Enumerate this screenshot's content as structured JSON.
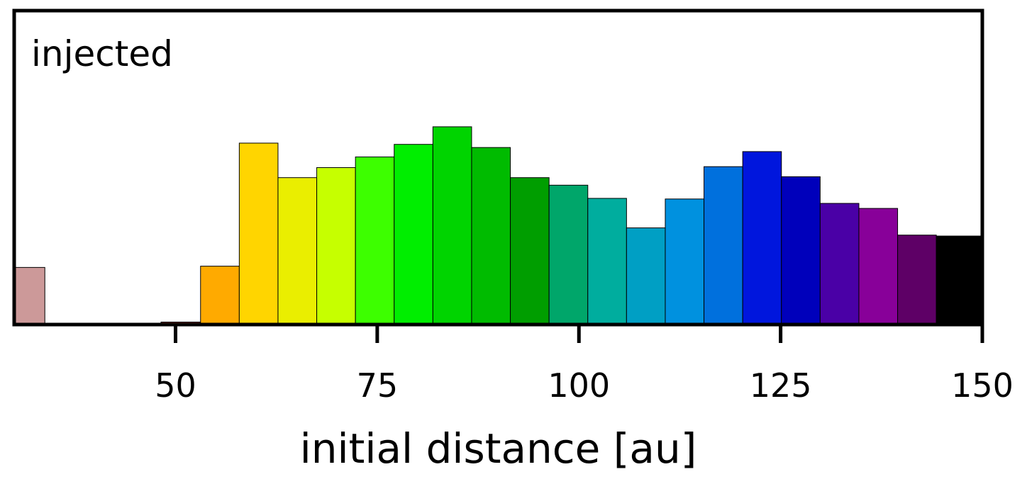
{
  "chart_data": {
    "type": "bar",
    "histogram": true,
    "annotation": "injected",
    "xlabel": "initial distance [au]",
    "ylabel": "",
    "xlim": [
      30,
      150
    ],
    "ylim": [
      0,
      1.0
    ],
    "xticks": [
      50,
      75,
      100,
      125,
      150
    ],
    "xtick_labels": [
      "50",
      "75",
      "100",
      "125",
      "150"
    ],
    "yticks_visible": false,
    "grid": false,
    "bin_width": 4.8,
    "bins": [
      {
        "x0": 30.0,
        "x1": 33.8,
        "value": 0.182,
        "color": "#cc9999"
      },
      {
        "x0": 48.2,
        "x1": 53.1,
        "value": 0.008,
        "color": "#993300"
      },
      {
        "x0": 53.1,
        "x1": 57.9,
        "value": 0.186,
        "color": "#ffaa00"
      },
      {
        "x0": 57.9,
        "x1": 62.7,
        "value": 0.578,
        "color": "#ffd500"
      },
      {
        "x0": 62.7,
        "x1": 67.5,
        "value": 0.468,
        "color": "#eaee00"
      },
      {
        "x0": 67.5,
        "x1": 72.3,
        "value": 0.5,
        "color": "#c6ff00"
      },
      {
        "x0": 72.3,
        "x1": 77.1,
        "value": 0.534,
        "color": "#3dff00"
      },
      {
        "x0": 77.1,
        "x1": 81.9,
        "value": 0.574,
        "color": "#00ee00"
      },
      {
        "x0": 81.9,
        "x1": 86.7,
        "value": 0.63,
        "color": "#00d400"
      },
      {
        "x0": 86.7,
        "x1": 91.5,
        "value": 0.564,
        "color": "#00bb00"
      },
      {
        "x0": 91.5,
        "x1": 96.3,
        "value": 0.468,
        "color": "#009e00"
      },
      {
        "x0": 96.3,
        "x1": 101.1,
        "value": 0.444,
        "color": "#00a66a"
      },
      {
        "x0": 101.1,
        "x1": 105.9,
        "value": 0.402,
        "color": "#00ad9e"
      },
      {
        "x0": 105.9,
        "x1": 110.7,
        "value": 0.308,
        "color": "#009fc4"
      },
      {
        "x0": 110.7,
        "x1": 115.5,
        "value": 0.4,
        "color": "#0091df"
      },
      {
        "x0": 115.5,
        "x1": 120.3,
        "value": 0.503,
        "color": "#0070dd"
      },
      {
        "x0": 120.3,
        "x1": 125.1,
        "value": 0.551,
        "color": "#0016dd"
      },
      {
        "x0": 125.1,
        "x1": 129.9,
        "value": 0.471,
        "color": "#0000bb"
      },
      {
        "x0": 129.9,
        "x1": 134.7,
        "value": 0.386,
        "color": "#4a00a6"
      },
      {
        "x0": 134.7,
        "x1": 139.5,
        "value": 0.37,
        "color": "#880099"
      },
      {
        "x0": 139.5,
        "x1": 144.3,
        "value": 0.285,
        "color": "#5e0066"
      },
      {
        "x0": 144.3,
        "x1": 150.0,
        "value": 0.282,
        "color": "#000000"
      }
    ]
  }
}
